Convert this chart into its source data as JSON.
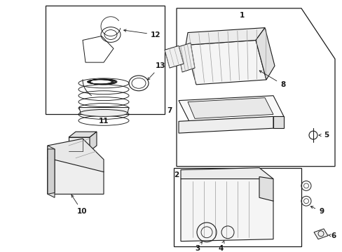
{
  "bg_color": "#ffffff",
  "line_color": "#1a1a1a",
  "fig_width": 4.89,
  "fig_height": 3.6,
  "dpi": 100,
  "gray_light": "#cccccc",
  "gray_mid": "#999999"
}
